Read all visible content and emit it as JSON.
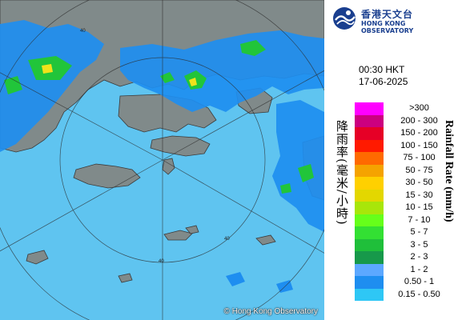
{
  "header": {
    "org_name_cn": "香港天文台",
    "org_name_en": "HONG KONG OBSERVATORY"
  },
  "timestamp": {
    "time": "00:30 HKT",
    "date": "17-06-2025"
  },
  "map": {
    "copyright": "© Hong Kong Observatory",
    "range_ring_labels": [
      "40",
      "40",
      "40"
    ],
    "colors": {
      "sea": "#5fc4f0",
      "land": "#808a8a",
      "rain_light": "#1e8ef0",
      "rain_medium": "#21c53a",
      "rain_heavy": "#f0e21a"
    }
  },
  "legend": {
    "title_cn": "降雨率(毫米/小時)",
    "title_en": "Rainfall Rate (mm/h)",
    "items": [
      {
        "label": ">300",
        "color": "#ff00ff"
      },
      {
        "label": "200 - 300",
        "color": "#cc0080"
      },
      {
        "label": "150 - 200",
        "color": "#e60026"
      },
      {
        "label": "100 - 150",
        "color": "#ff1a00"
      },
      {
        "label": "75 - 100",
        "color": "#ff6a00"
      },
      {
        "label": "50 - 75",
        "color": "#f5a300"
      },
      {
        "label": "30 - 50",
        "color": "#ffd000"
      },
      {
        "label": "15 - 30",
        "color": "#e3d700"
      },
      {
        "label": "10 - 15",
        "color": "#a8e60a"
      },
      {
        "label": "7 - 10",
        "color": "#66ff1a"
      },
      {
        "label": "5 - 7",
        "color": "#33e033"
      },
      {
        "label": "3 - 5",
        "color": "#1fbf3a"
      },
      {
        "label": "2 - 3",
        "color": "#17994a"
      },
      {
        "label": "1 - 2",
        "color": "#5ca8ff"
      },
      {
        "label": "0.50 - 1",
        "color": "#1e8ef0"
      },
      {
        "label": "0.15 - 0.50",
        "color": "#2ec7f5"
      }
    ]
  }
}
